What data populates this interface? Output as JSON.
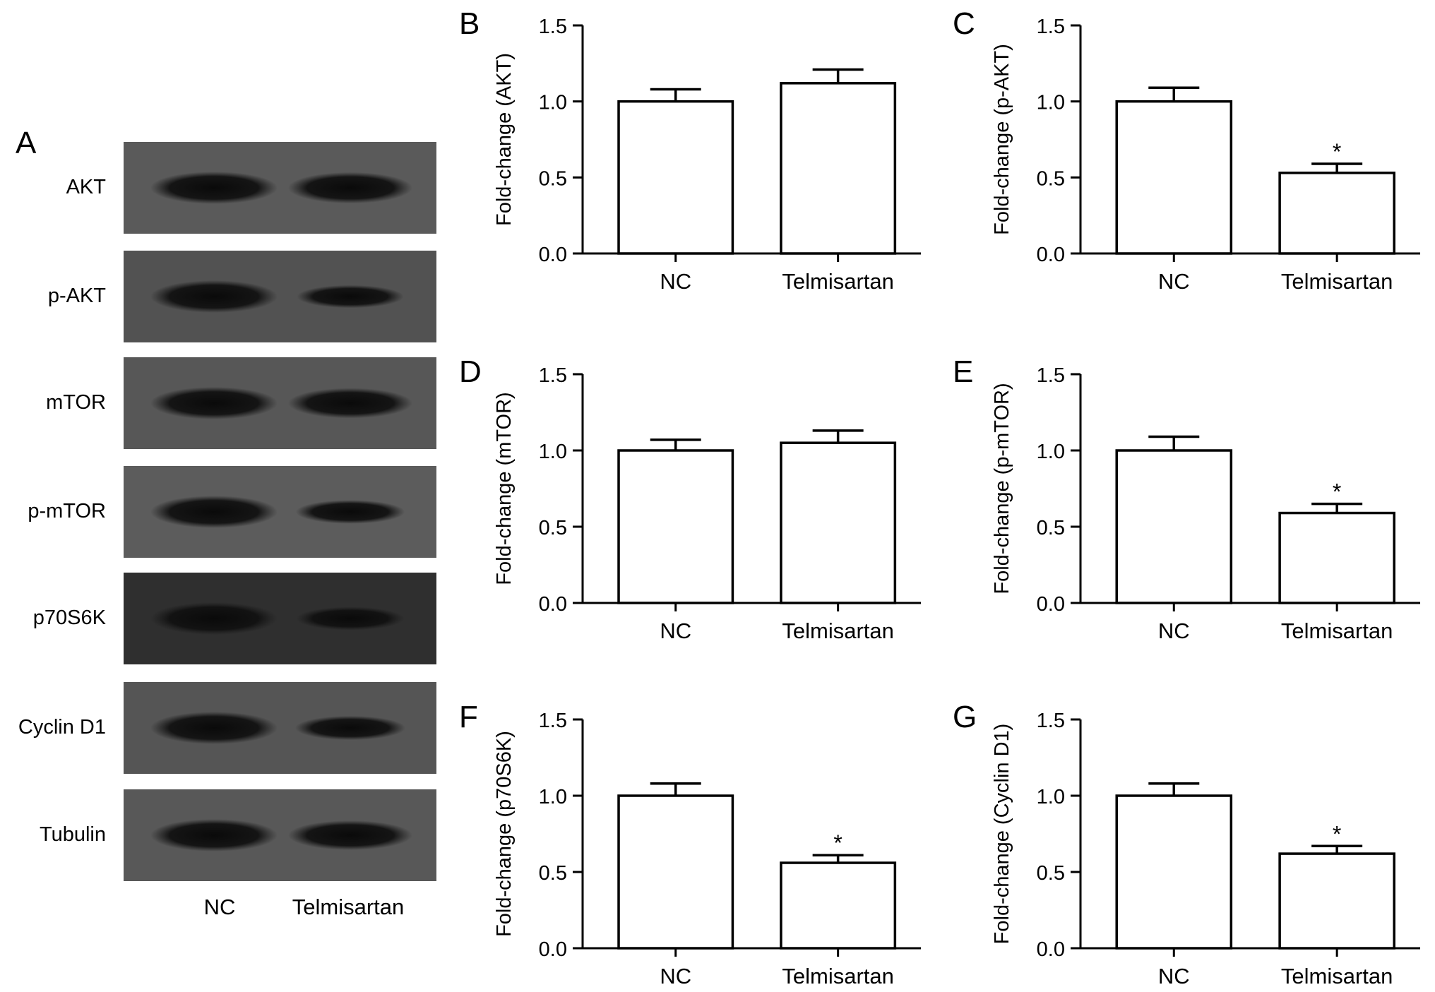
{
  "western_blot": {
    "panel": "A",
    "rows": [
      {
        "label": "AKT",
        "nc_intensity": 1.0,
        "tel_intensity": 1.12,
        "background": "#5a5a5a"
      },
      {
        "label": "p-AKT",
        "nc_intensity": 1.0,
        "tel_intensity": 0.53,
        "background": "#525252"
      },
      {
        "label": "mTOR",
        "nc_intensity": 1.0,
        "tel_intensity": 1.05,
        "background": "#575757"
      },
      {
        "label": "p-mTOR",
        "nc_intensity": 1.0,
        "tel_intensity": 0.59,
        "background": "#5c5c5c"
      },
      {
        "label": "p70S6K",
        "nc_intensity": 1.0,
        "tel_intensity": 0.56,
        "background": "#2f2f2f"
      },
      {
        "label": "Cyclin D1",
        "nc_intensity": 1.0,
        "tel_intensity": 0.62,
        "background": "#555555"
      },
      {
        "label": "Tubulin",
        "nc_intensity": 1.0,
        "tel_intensity": 1.0,
        "background": "#585858"
      }
    ],
    "lanes": [
      "NC",
      "Telmisartan"
    ]
  },
  "chart_data": [
    {
      "panel": "B",
      "type": "bar",
      "categories": [
        "NC",
        "Telmisartan"
      ],
      "values": [
        1.0,
        1.12
      ],
      "errors": [
        0.08,
        0.09
      ],
      "significance": [
        "",
        ""
      ],
      "ylabel": "Fold-change (AKT)",
      "ylim": [
        0,
        1.5
      ],
      "yticks": [
        "0.0",
        "0.5",
        "1.0",
        "1.5"
      ]
    },
    {
      "panel": "C",
      "type": "bar",
      "categories": [
        "NC",
        "Telmisartan"
      ],
      "values": [
        1.0,
        0.53
      ],
      "errors": [
        0.09,
        0.06
      ],
      "significance": [
        "",
        "*"
      ],
      "ylabel": "Fold-change (p-AKT)",
      "ylim": [
        0,
        1.5
      ],
      "yticks": [
        "0.0",
        "0.5",
        "1.0",
        "1.5"
      ]
    },
    {
      "panel": "D",
      "type": "bar",
      "categories": [
        "NC",
        "Telmisartan"
      ],
      "values": [
        1.0,
        1.05
      ],
      "errors": [
        0.07,
        0.08
      ],
      "significance": [
        "",
        ""
      ],
      "ylabel": "Fold-change (mTOR)",
      "ylim": [
        0,
        1.5
      ],
      "yticks": [
        "0.0",
        "0.5",
        "1.0",
        "1.5"
      ]
    },
    {
      "panel": "E",
      "type": "bar",
      "categories": [
        "NC",
        "Telmisartan"
      ],
      "values": [
        1.0,
        0.59
      ],
      "errors": [
        0.09,
        0.06
      ],
      "significance": [
        "",
        "*"
      ],
      "ylabel": "Fold-change (p-mTOR)",
      "ylim": [
        0,
        1.5
      ],
      "yticks": [
        "0.0",
        "0.5",
        "1.0",
        "1.5"
      ]
    },
    {
      "panel": "F",
      "type": "bar",
      "categories": [
        "NC",
        "Telmisartan"
      ],
      "values": [
        1.0,
        0.56
      ],
      "errors": [
        0.08,
        0.05
      ],
      "significance": [
        "",
        "*"
      ],
      "ylabel": "Fold-change (p70S6K)",
      "ylim": [
        0,
        1.5
      ],
      "yticks": [
        "0.0",
        "0.5",
        "1.0",
        "1.5"
      ]
    },
    {
      "panel": "G",
      "type": "bar",
      "categories": [
        "NC",
        "Telmisartan"
      ],
      "values": [
        1.0,
        0.62
      ],
      "errors": [
        0.08,
        0.05
      ],
      "significance": [
        "",
        "*"
      ],
      "ylabel": "Fold-change (Cyclin D1)",
      "ylim": [
        0,
        1.5
      ],
      "yticks": [
        "0.0",
        "0.5",
        "1.0",
        "1.5"
      ]
    }
  ]
}
